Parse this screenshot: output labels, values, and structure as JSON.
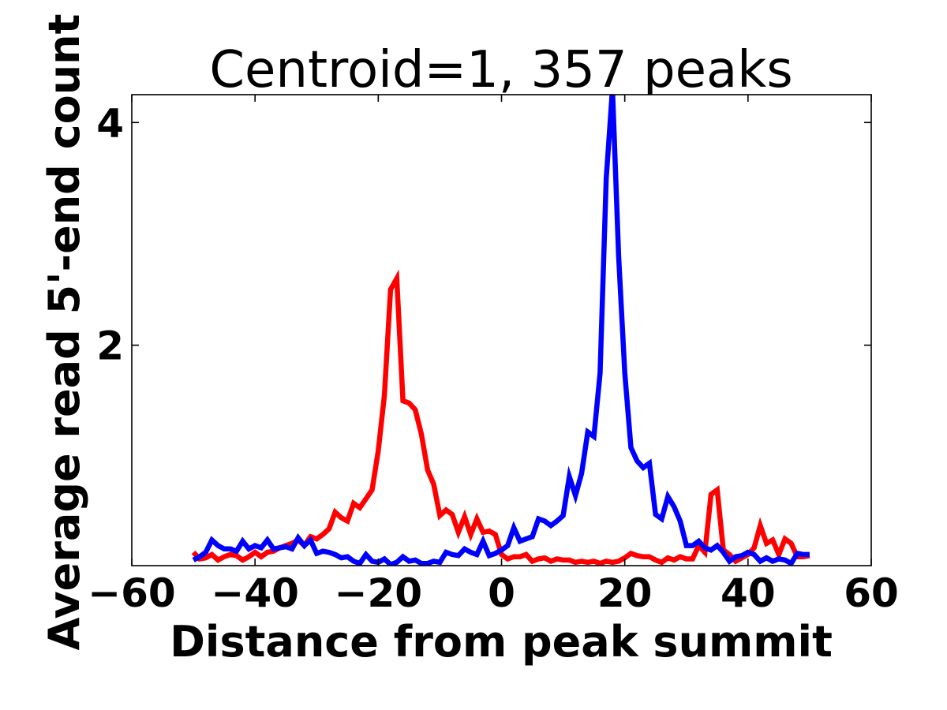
{
  "chart_data": {
    "type": "line",
    "title": "Centroid=1, 357 peaks",
    "xlabel": "Distance from peak summit",
    "ylabel": "Average read 5'-end count",
    "xlim": [
      -60,
      60
    ],
    "ylim": [
      0.02,
      4.25
    ],
    "xticks": [
      -60,
      -40,
      -20,
      0,
      20,
      40,
      60
    ],
    "xtick_labels": [
      "−60",
      "−40",
      "−20",
      "0",
      "20",
      "40",
      "60"
    ],
    "yticks": [
      2,
      4
    ],
    "ytick_labels": [
      "2",
      "4"
    ],
    "grid": false,
    "legend": false,
    "x": [
      -50,
      -49,
      -48,
      -47,
      -46,
      -45,
      -44,
      -43,
      -42,
      -41,
      -40,
      -39,
      -38,
      -37,
      -36,
      -35,
      -34,
      -33,
      -32,
      -31,
      -30,
      -29,
      -28,
      -27,
      -26,
      -25,
      -24,
      -23,
      -22,
      -21,
      -20,
      -19,
      -18,
      -17,
      -16,
      -15,
      -14,
      -13,
      -12,
      -11,
      -10,
      -9,
      -8,
      -7,
      -6,
      -5,
      -4,
      -3,
      -2,
      -1,
      0,
      1,
      2,
      3,
      4,
      5,
      6,
      7,
      8,
      9,
      10,
      11,
      12,
      13,
      14,
      15,
      16,
      17,
      18,
      19,
      20,
      21,
      22,
      23,
      24,
      25,
      26,
      27,
      28,
      29,
      30,
      31,
      32,
      33,
      34,
      35,
      36,
      37,
      38,
      39,
      40,
      41,
      42,
      43,
      44,
      45,
      46,
      47,
      48,
      49,
      50
    ],
    "series": [
      {
        "color": "#ff0000",
        "values": [
          0.14,
          0.08,
          0.09,
          0.12,
          0.07,
          0.1,
          0.12,
          0.11,
          0.07,
          0.1,
          0.14,
          0.1,
          0.14,
          0.15,
          0.18,
          0.2,
          0.22,
          0.25,
          0.2,
          0.28,
          0.26,
          0.3,
          0.35,
          0.5,
          0.45,
          0.42,
          0.58,
          0.54,
          0.62,
          0.7,
          1.05,
          1.55,
          2.5,
          2.6,
          1.5,
          1.48,
          1.42,
          1.2,
          0.88,
          0.75,
          0.47,
          0.52,
          0.48,
          0.32,
          0.46,
          0.3,
          0.44,
          0.32,
          0.33,
          0.3,
          0.12,
          0.08,
          0.1,
          0.1,
          0.12,
          0.06,
          0.08,
          0.09,
          0.06,
          0.08,
          0.07,
          0.07,
          0.05,
          0.06,
          0.05,
          0.06,
          0.04,
          0.06,
          0.05,
          0.06,
          0.09,
          0.13,
          0.11,
          0.1,
          0.1,
          0.07,
          0.05,
          0.09,
          0.07,
          0.1,
          0.08,
          0.08,
          0.2,
          0.14,
          0.66,
          0.7,
          0.16,
          0.12,
          0.06,
          0.09,
          0.12,
          0.18,
          0.38,
          0.22,
          0.25,
          0.12,
          0.26,
          0.22,
          0.1,
          0.1,
          0.11
        ]
      },
      {
        "color": "#0000ff",
        "values": [
          0.07,
          0.1,
          0.14,
          0.25,
          0.2,
          0.17,
          0.17,
          0.15,
          0.24,
          0.17,
          0.2,
          0.18,
          0.25,
          0.17,
          0.18,
          0.19,
          0.17,
          0.27,
          0.2,
          0.25,
          0.13,
          0.15,
          0.14,
          0.12,
          0.09,
          0.1,
          0.06,
          0.04,
          0.12,
          0.06,
          0.05,
          0.08,
          0.03,
          0.05,
          0.1,
          0.06,
          0.07,
          0.04,
          0.04,
          0.06,
          0.05,
          0.14,
          0.12,
          0.11,
          0.17,
          0.14,
          0.12,
          0.24,
          0.11,
          0.13,
          0.16,
          0.2,
          0.36,
          0.24,
          0.26,
          0.28,
          0.44,
          0.42,
          0.38,
          0.42,
          0.47,
          0.82,
          0.65,
          0.85,
          1.22,
          1.18,
          1.75,
          3.5,
          4.3,
          2.8,
          1.75,
          1.08,
          0.96,
          0.9,
          0.94,
          0.48,
          0.44,
          0.64,
          0.55,
          0.42,
          0.2,
          0.2,
          0.24,
          0.18,
          0.16,
          0.2,
          0.14,
          0.06,
          0.1,
          0.11,
          0.14,
          0.12,
          0.06,
          0.09,
          0.06,
          0.08,
          0.07,
          0.04,
          0.13,
          0.12,
          0.12
        ]
      }
    ]
  }
}
